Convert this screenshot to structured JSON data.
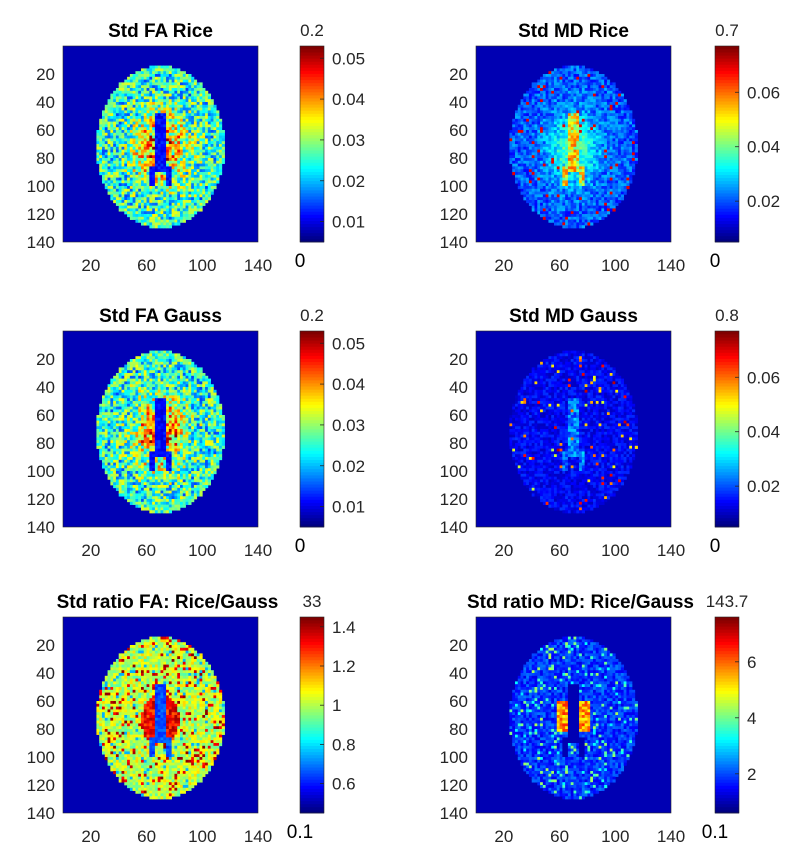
{
  "chart_data": [
    {
      "type": "heatmap",
      "title": "Std FA Rice",
      "image": "brain-axial-slice",
      "variant": "fa",
      "ticks": {
        "x": [
          "20",
          "60",
          "100",
          "140"
        ],
        "y": [
          "20",
          "40",
          "60",
          "80",
          "100",
          "120",
          "140"
        ]
      },
      "xlim": [
        0,
        140
      ],
      "ylim": [
        0,
        140
      ],
      "colorbar": {
        "colormap": "jet",
        "max_label": "0.2",
        "min_label": "0",
        "ticks": [
          "0.01",
          "0.02",
          "0.03",
          "0.04",
          "0.05"
        ],
        "range": [
          0.005,
          0.053
        ]
      }
    },
    {
      "type": "heatmap",
      "title": "Std MD Rice",
      "image": "brain-axial-slice",
      "variant": "md_rice",
      "ticks": {
        "x": [
          "20",
          "60",
          "100",
          "140"
        ],
        "y": [
          "20",
          "40",
          "60",
          "80",
          "100",
          "120",
          "140"
        ]
      },
      "xlim": [
        0,
        140
      ],
      "ylim": [
        0,
        140
      ],
      "colorbar": {
        "colormap": "jet",
        "max_label": "0.7",
        "min_label": "0",
        "ticks": [
          "0.02",
          "0.04",
          "0.06"
        ],
        "range": [
          0.005,
          0.077
        ]
      }
    },
    {
      "type": "heatmap",
      "title": "Std FA Gauss",
      "image": "brain-axial-slice",
      "variant": "fa",
      "ticks": {
        "x": [
          "20",
          "60",
          "100",
          "140"
        ],
        "y": [
          "20",
          "40",
          "60",
          "80",
          "100",
          "120",
          "140"
        ]
      },
      "xlim": [
        0,
        140
      ],
      "ylim": [
        0,
        140
      ],
      "colorbar": {
        "colormap": "jet",
        "max_label": "0.2",
        "min_label": "0",
        "ticks": [
          "0.01",
          "0.02",
          "0.03",
          "0.04",
          "0.05"
        ],
        "range": [
          0.005,
          0.053
        ]
      }
    },
    {
      "type": "heatmap",
      "title": "Std MD Gauss",
      "image": "brain-axial-slice",
      "variant": "md_gauss",
      "ticks": {
        "x": [
          "20",
          "60",
          "100",
          "140"
        ],
        "y": [
          "20",
          "40",
          "60",
          "80",
          "100",
          "120",
          "140"
        ]
      },
      "xlim": [
        0,
        140
      ],
      "ylim": [
        0,
        140
      ],
      "colorbar": {
        "colormap": "jet",
        "max_label": "0.8",
        "min_label": "0",
        "ticks": [
          "0.02",
          "0.04",
          "0.06"
        ],
        "range": [
          0.005,
          0.077
        ]
      }
    },
    {
      "type": "heatmap",
      "title": "Std ratio FA: Rice/Gauss",
      "image": "brain-axial-slice",
      "variant": "ratio_fa",
      "ticks": {
        "x": [
          "20",
          "60",
          "100",
          "140"
        ],
        "y": [
          "20",
          "40",
          "60",
          "80",
          "100",
          "120",
          "140"
        ]
      },
      "xlim": [
        0,
        140
      ],
      "ylim": [
        0,
        140
      ],
      "colorbar": {
        "colormap": "jet",
        "max_label": "33",
        "min_label": "0.1",
        "ticks": [
          "0.6",
          "0.8",
          "1",
          "1.2",
          "1.4"
        ],
        "range": [
          0.45,
          1.45
        ]
      }
    },
    {
      "type": "heatmap",
      "title": "Std ratio MD: Rice/Gauss",
      "image": "brain-axial-slice",
      "variant": "ratio_md",
      "ticks": {
        "x": [
          "20",
          "60",
          "100",
          "140"
        ],
        "y": [
          "20",
          "40",
          "60",
          "80",
          "100",
          "120",
          "140"
        ]
      },
      "xlim": [
        0,
        140
      ],
      "ylim": [
        0,
        140
      ],
      "colorbar": {
        "colormap": "jet",
        "max_label": "143.7",
        "min_label": "0.1",
        "ticks": [
          "2",
          "4",
          "6"
        ],
        "range": [
          0.6,
          7.6
        ]
      }
    }
  ]
}
